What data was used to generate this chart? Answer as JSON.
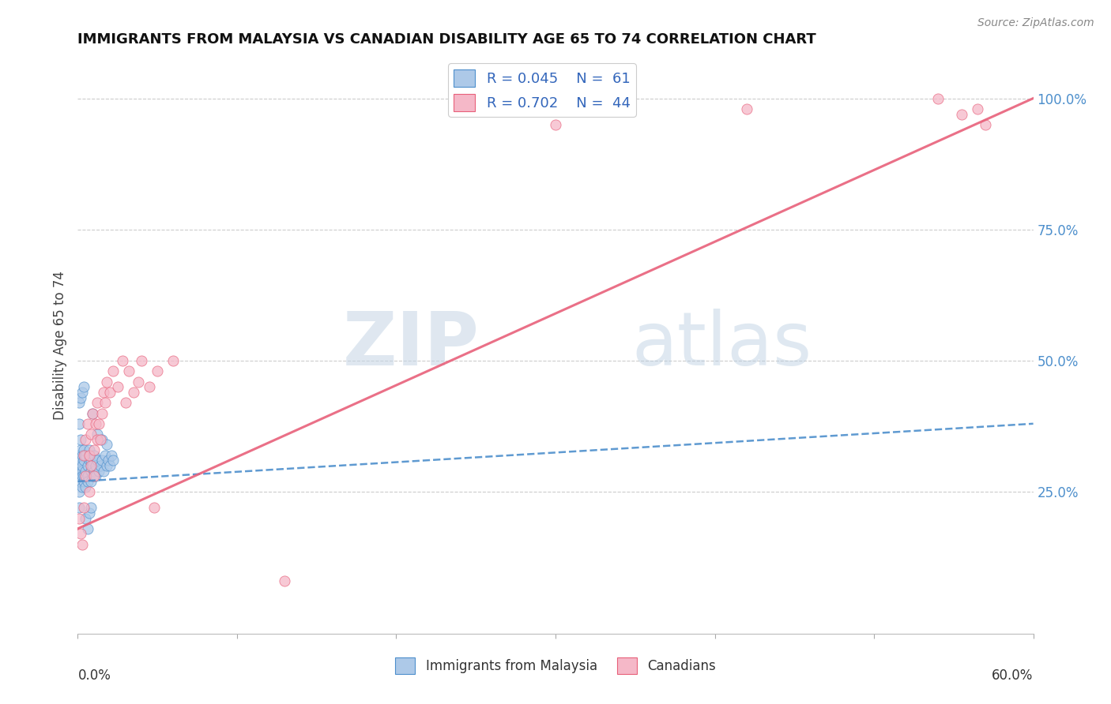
{
  "title": "IMMIGRANTS FROM MALAYSIA VS CANADIAN DISABILITY AGE 65 TO 74 CORRELATION CHART",
  "source": "Source: ZipAtlas.com",
  "ylabel": "Disability Age 65 to 74",
  "legend_blue_label": "Immigrants from Malaysia",
  "legend_pink_label": "Canadians",
  "blue_R": "0.045",
  "blue_N": "61",
  "pink_R": "0.702",
  "pink_N": "44",
  "watermark_zip": "ZIP",
  "watermark_atlas": "atlas",
  "blue_color": "#adc9e8",
  "pink_color": "#f5b8c8",
  "blue_line_color": "#4d8fcc",
  "pink_line_color": "#e8607a",
  "right_yticks": [
    0.0,
    0.25,
    0.5,
    0.75,
    1.0
  ],
  "right_ytick_labels": [
    "",
    "25.0%",
    "50.0%",
    "75.0%",
    "100.0%"
  ],
  "xlim": [
    0.0,
    0.6
  ],
  "ylim": [
    -0.02,
    1.08
  ],
  "blue_x": [
    0.001,
    0.001,
    0.001,
    0.001,
    0.001,
    0.002,
    0.002,
    0.002,
    0.002,
    0.002,
    0.002,
    0.003,
    0.003,
    0.003,
    0.003,
    0.003,
    0.004,
    0.004,
    0.004,
    0.004,
    0.005,
    0.005,
    0.005,
    0.006,
    0.006,
    0.006,
    0.007,
    0.007,
    0.008,
    0.008,
    0.008,
    0.009,
    0.009,
    0.01,
    0.01,
    0.011,
    0.011,
    0.012,
    0.013,
    0.014,
    0.015,
    0.016,
    0.017,
    0.018,
    0.019,
    0.02,
    0.021,
    0.022,
    0.001,
    0.001,
    0.002,
    0.003,
    0.004,
    0.005,
    0.006,
    0.007,
    0.008,
    0.009,
    0.012,
    0.015,
    0.018
  ],
  "blue_y": [
    0.28,
    0.3,
    0.32,
    0.25,
    0.22,
    0.27,
    0.3,
    0.29,
    0.31,
    0.33,
    0.35,
    0.26,
    0.29,
    0.32,
    0.28,
    0.3,
    0.27,
    0.31,
    0.33,
    0.28,
    0.26,
    0.29,
    0.32,
    0.28,
    0.3,
    0.27,
    0.31,
    0.33,
    0.29,
    0.31,
    0.27,
    0.3,
    0.28,
    0.29,
    0.32,
    0.28,
    0.3,
    0.31,
    0.29,
    0.3,
    0.31,
    0.29,
    0.32,
    0.3,
    0.31,
    0.3,
    0.32,
    0.31,
    0.38,
    0.42,
    0.43,
    0.44,
    0.45,
    0.2,
    0.18,
    0.21,
    0.22,
    0.4,
    0.36,
    0.35,
    0.34
  ],
  "pink_x": [
    0.001,
    0.002,
    0.003,
    0.004,
    0.004,
    0.005,
    0.005,
    0.006,
    0.007,
    0.007,
    0.008,
    0.008,
    0.009,
    0.01,
    0.01,
    0.011,
    0.012,
    0.012,
    0.013,
    0.014,
    0.015,
    0.016,
    0.017,
    0.018,
    0.02,
    0.022,
    0.025,
    0.028,
    0.03,
    0.032,
    0.035,
    0.038,
    0.04,
    0.045,
    0.048,
    0.05,
    0.06,
    0.13,
    0.3,
    0.42,
    0.54,
    0.555,
    0.565,
    0.57
  ],
  "pink_y": [
    0.2,
    0.17,
    0.15,
    0.22,
    0.32,
    0.28,
    0.35,
    0.38,
    0.25,
    0.32,
    0.3,
    0.36,
    0.4,
    0.28,
    0.33,
    0.38,
    0.35,
    0.42,
    0.38,
    0.35,
    0.4,
    0.44,
    0.42,
    0.46,
    0.44,
    0.48,
    0.45,
    0.5,
    0.42,
    0.48,
    0.44,
    0.46,
    0.5,
    0.45,
    0.22,
    0.48,
    0.5,
    0.08,
    0.95,
    0.98,
    1.0,
    0.97,
    0.98,
    0.95
  ],
  "blue_trend": [
    0.0,
    0.6
  ],
  "blue_trend_y": [
    0.27,
    0.38
  ],
  "pink_trend": [
    0.0,
    0.6
  ],
  "pink_trend_y": [
    0.18,
    1.0
  ]
}
